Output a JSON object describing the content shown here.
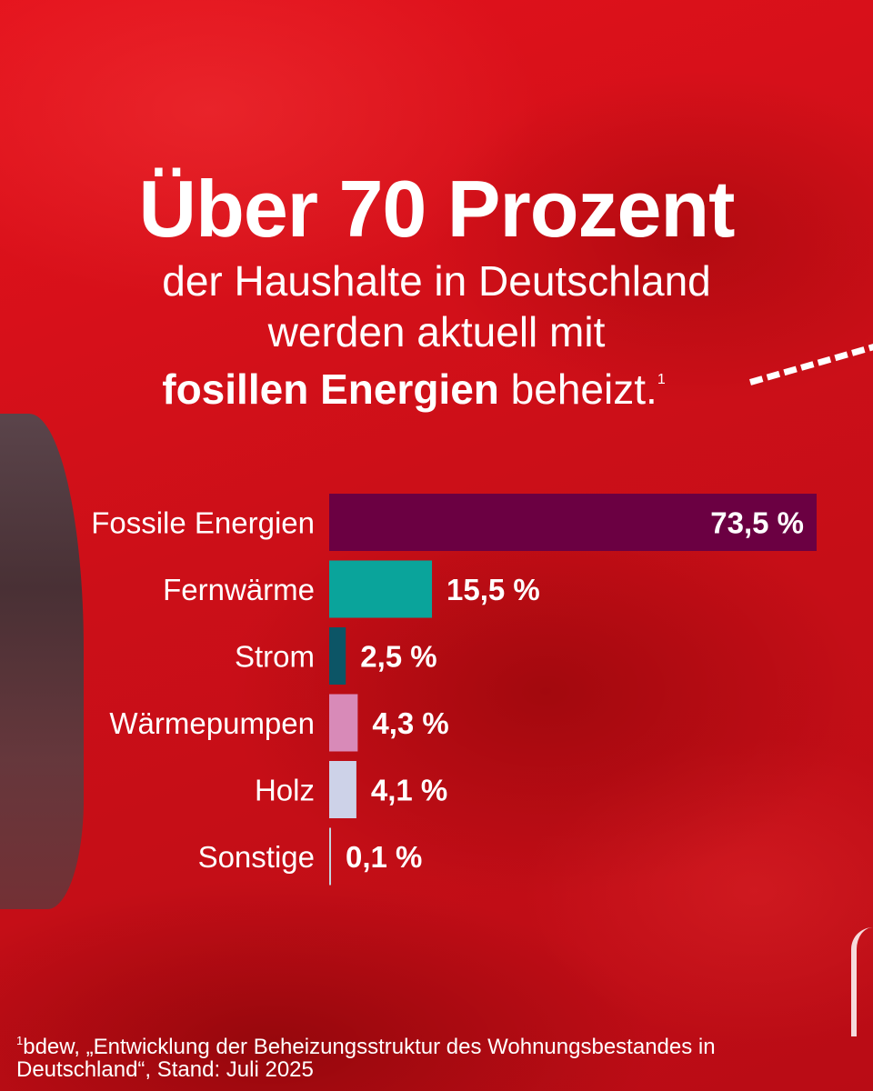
{
  "headline": {
    "title": "Über 70 Prozent",
    "line1": "der Haushalte in Deutschland",
    "line2": "werden aktuell mit",
    "line3_bold": "fosillen Energien",
    "line3_rest": " beheizt.",
    "footnote_mark": "1"
  },
  "chart_data": {
    "type": "bar",
    "orientation": "horizontal",
    "categories": [
      "Fossile Energien",
      "Fernwärme",
      "Strom",
      "Wärmepumpen",
      "Holz",
      "Sonstige"
    ],
    "values": [
      73.5,
      15.5,
      2.5,
      4.3,
      4.1,
      0.1
    ],
    "value_labels": [
      "73,5 %",
      "15,5 %",
      "2,5 %",
      "4,3 %",
      "4,1 %",
      "0,1 %"
    ],
    "colors": [
      "#6b0042",
      "#0aa49b",
      "#0c5566",
      "#d88ab8",
      "#cdd2e8",
      "#c2d4de"
    ],
    "xlim": [
      0,
      73.5
    ],
    "first_label_inside": true
  },
  "footnote": {
    "mark": "1",
    "text": "bdew, „Entwicklung der Beheizungsstruktur des Wohnungsbestandes in Deutschland“, Stand: Juli 2025"
  }
}
